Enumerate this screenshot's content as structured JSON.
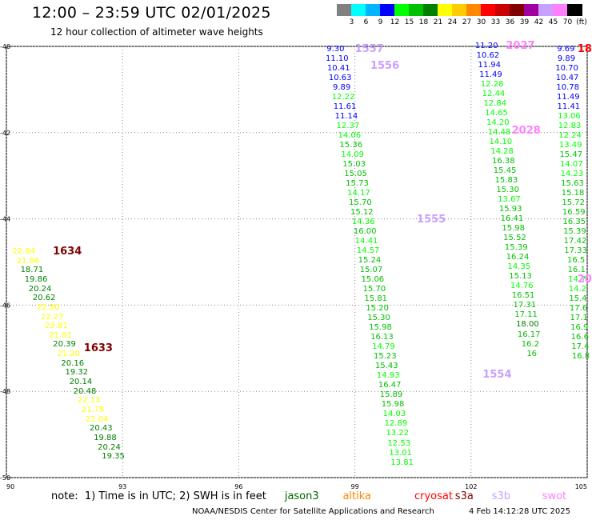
{
  "header": {
    "title": "12:00 – 23:59 UTC 02/01/2025",
    "subtitle": "12 hour collection of altimeter wave heights"
  },
  "color_scale": {
    "unit": "(ft)",
    "bins": [
      {
        "label": "3",
        "color": "#808080"
      },
      {
        "label": "6",
        "color": "#00ffff"
      },
      {
        "label": "9",
        "color": "#00b4ff"
      },
      {
        "label": "12",
        "color": "#0000ff"
      },
      {
        "label": "15",
        "color": "#00ff00"
      },
      {
        "label": "18",
        "color": "#00c000"
      },
      {
        "label": "21",
        "color": "#008000"
      },
      {
        "label": "24",
        "color": "#ffff00"
      },
      {
        "label": "27",
        "color": "#ffcc00"
      },
      {
        "label": "30",
        "color": "#ff8800"
      },
      {
        "label": "33",
        "color": "#ff0000"
      },
      {
        "label": "36",
        "color": "#cc0000"
      },
      {
        "label": "39",
        "color": "#800000"
      },
      {
        "label": "42",
        "color": "#a000a0"
      },
      {
        "label": "45",
        "color": "#c8a0ff"
      },
      {
        "label": "70",
        "color": "#ff80ff"
      },
      {
        "label": "",
        "color": "#000000"
      }
    ]
  },
  "axes": {
    "lat_ticks": [
      "-40",
      "-42",
      "-44",
      "-46",
      "-48",
      "-50"
    ],
    "lon_ticks": [
      "90",
      "93",
      "96",
      "99",
      "102",
      "105"
    ],
    "lat_range": [
      -50,
      -40
    ],
    "lon_range": [
      90,
      105
    ]
  },
  "tracks": [
    {
      "id": "1634",
      "color": "#800000",
      "lon": 91.2,
      "lat": -44.75
    },
    {
      "id": "1633",
      "color": "#800000",
      "lon": 92.0,
      "lat": -47.0
    },
    {
      "id": "1557",
      "color": "#c8a0ff",
      "lon": 99.0,
      "lat": -40.05
    },
    {
      "id": "1556",
      "color": "#c8a0ff",
      "lon": 99.4,
      "lat": -40.45
    },
    {
      "id": "1555",
      "color": "#c8a0ff",
      "lon": 100.6,
      "lat": -44.0
    },
    {
      "id": "1554",
      "color": "#c8a0ff",
      "lon": 102.3,
      "lat": -47.6
    },
    {
      "id": "2027",
      "color": "#ff80ff",
      "lon": 102.9,
      "lat": -39.98
    },
    {
      "id": "2028",
      "color": "#ff80ff",
      "lon": 103.05,
      "lat": -41.95
    },
    {
      "id": "18",
      "color": "#ff0000",
      "lon": 104.75,
      "lat": -40.05
    },
    {
      "id": "20",
      "color": "#ff80ff",
      "lon": 104.75,
      "lat": -45.4
    }
  ],
  "obs_tracks": [
    {
      "lon0": 90.45,
      "lat0": -44.75,
      "dlon": 0.105,
      "dlat": 0.216,
      "values": [
        "22.84",
        "21.66",
        "18.71",
        "19.86",
        "20.24",
        "20.62",
        "22.50",
        "22.27",
        "23.81",
        "21.61",
        "20.39",
        "21.20",
        "20.16",
        "19.32",
        "20.14",
        "20.48",
        "22.13",
        "21.75",
        "22.04",
        "20.43",
        "19.88",
        "20.24",
        "19.35"
      ]
    },
    {
      "lon0": 98.5,
      "lat0": -40.05,
      "dlon": 0.04,
      "dlat": 0.223,
      "values": [
        "9.30",
        "11.10",
        "10.41",
        "10.63",
        "9.89",
        "12.22",
        "11.61",
        "11.14",
        "12.37",
        "14.06",
        "15.36",
        "14.09",
        "15.03",
        "15.05",
        "15.73",
        "14.17",
        "15.70",
        "15.12",
        "14.36",
        "16.00",
        "14.41",
        "14.57",
        "15.24",
        "15.07",
        "15.06",
        "15.70",
        "15.81",
        "15.20",
        "15.30",
        "15.98",
        "16.13",
        "14.79",
        "15.23",
        "15.43",
        "14.93",
        "16.47",
        "15.89",
        "15.98",
        "14.03",
        "12.89",
        "13.22",
        "12.53",
        "13.01",
        "13.81"
      ]
    },
    {
      "lon0": 102.4,
      "lat0": -39.98,
      "dlon": 0.0365,
      "dlat": 0.223,
      "values": [
        "11.20",
        "10.62",
        "11.94",
        "11.49",
        "12.28",
        "12.44",
        "12.84",
        "14.65",
        "14.20",
        "14.48",
        "14.10",
        "14.28",
        "16.38",
        "15.45",
        "15.83",
        "15.30",
        "13.67",
        "15.93",
        "16.41",
        "15.98",
        "15.52",
        "15.39",
        "16.24",
        "14.35",
        "15.13",
        "14.76",
        "16.51",
        "17.31",
        "17.11",
        "18.00",
        "16.17",
        "16.2",
        "16"
      ]
    },
    {
      "lon0": 104.45,
      "lat0": -40.05,
      "dlon": 0.012,
      "dlat": 0.223,
      "values": [
        "9.69",
        "9.89",
        "10.70",
        "10.47",
        "10.78",
        "11.49",
        "11.41",
        "13.06",
        "12.83",
        "12.24",
        "13.49",
        "15.47",
        "14.07",
        "14.23",
        "15.63",
        "15.18",
        "15.72",
        "16.59",
        "16.35",
        "15.39",
        "17.42",
        "17.33",
        "16.5",
        "16.1",
        "14.7",
        "14.2",
        "15.4",
        "17.6",
        "17.1",
        "16.9",
        "16.6",
        "17.4",
        "16.8"
      ]
    }
  ],
  "note": {
    "text": "note:  1) Time is in UTC; 2) SWH is in feet",
    "satellites": [
      {
        "name": "jason3",
        "color": "#006400",
        "lon": 97.6
      },
      {
        "name": "altika",
        "color": "#ff8800",
        "lon": 99.1
      },
      {
        "name": "cryosat",
        "color": "#ff0000",
        "lon": 100.95
      },
      {
        "name": "s3a",
        "color": "#800000",
        "lon": 102.0
      },
      {
        "name": "s3b",
        "color": "#c8a0ff",
        "lon": 102.95
      },
      {
        "name": "swot",
        "color": "#ff80ff",
        "lon": 104.25
      }
    ]
  },
  "footer": "NOAA/NESDIS Center for Satellite Applications and Research",
  "timestamp": "4 Feb 14:12:28 UTC 2025"
}
